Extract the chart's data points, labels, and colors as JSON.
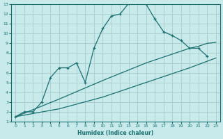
{
  "xlabel": "Humidex (Indice chaleur)",
  "bg_color": "#c8eaea",
  "line_color": "#1a7070",
  "grid_color": "#a8cccc",
  "xlim": [
    -0.5,
    23.5
  ],
  "ylim": [
    1,
    13
  ],
  "xticks": [
    0,
    1,
    2,
    3,
    4,
    5,
    6,
    7,
    8,
    9,
    10,
    11,
    12,
    13,
    14,
    15,
    16,
    17,
    18,
    19,
    20,
    21,
    22,
    23
  ],
  "yticks": [
    1,
    2,
    3,
    4,
    5,
    6,
    7,
    8,
    9,
    10,
    11,
    12,
    13
  ],
  "curve_x": [
    0,
    1,
    2,
    3,
    4,
    5,
    6,
    7,
    8,
    9,
    10,
    11,
    12,
    13,
    14,
    15,
    16,
    17,
    18,
    19,
    20,
    21,
    22
  ],
  "curve_y": [
    1.5,
    2.0,
    2.0,
    3.0,
    5.5,
    6.5,
    6.5,
    7.0,
    5.0,
    8.5,
    10.5,
    11.8,
    12.0,
    13.1,
    13.2,
    13.0,
    11.5,
    10.2,
    9.8,
    9.3,
    8.5,
    8.5,
    7.7
  ],
  "line_upper_x": [
    0,
    5,
    10,
    15,
    16,
    17,
    18,
    19,
    20,
    21,
    22,
    23
  ],
  "line_upper_y": [
    1.5,
    3.3,
    5.2,
    7.0,
    7.3,
    7.6,
    7.9,
    8.2,
    8.5,
    8.7,
    9.0,
    9.1
  ],
  "line_lower_x": [
    0,
    5,
    10,
    15,
    20,
    23
  ],
  "line_lower_y": [
    1.5,
    2.3,
    3.5,
    5.0,
    6.5,
    7.5
  ]
}
